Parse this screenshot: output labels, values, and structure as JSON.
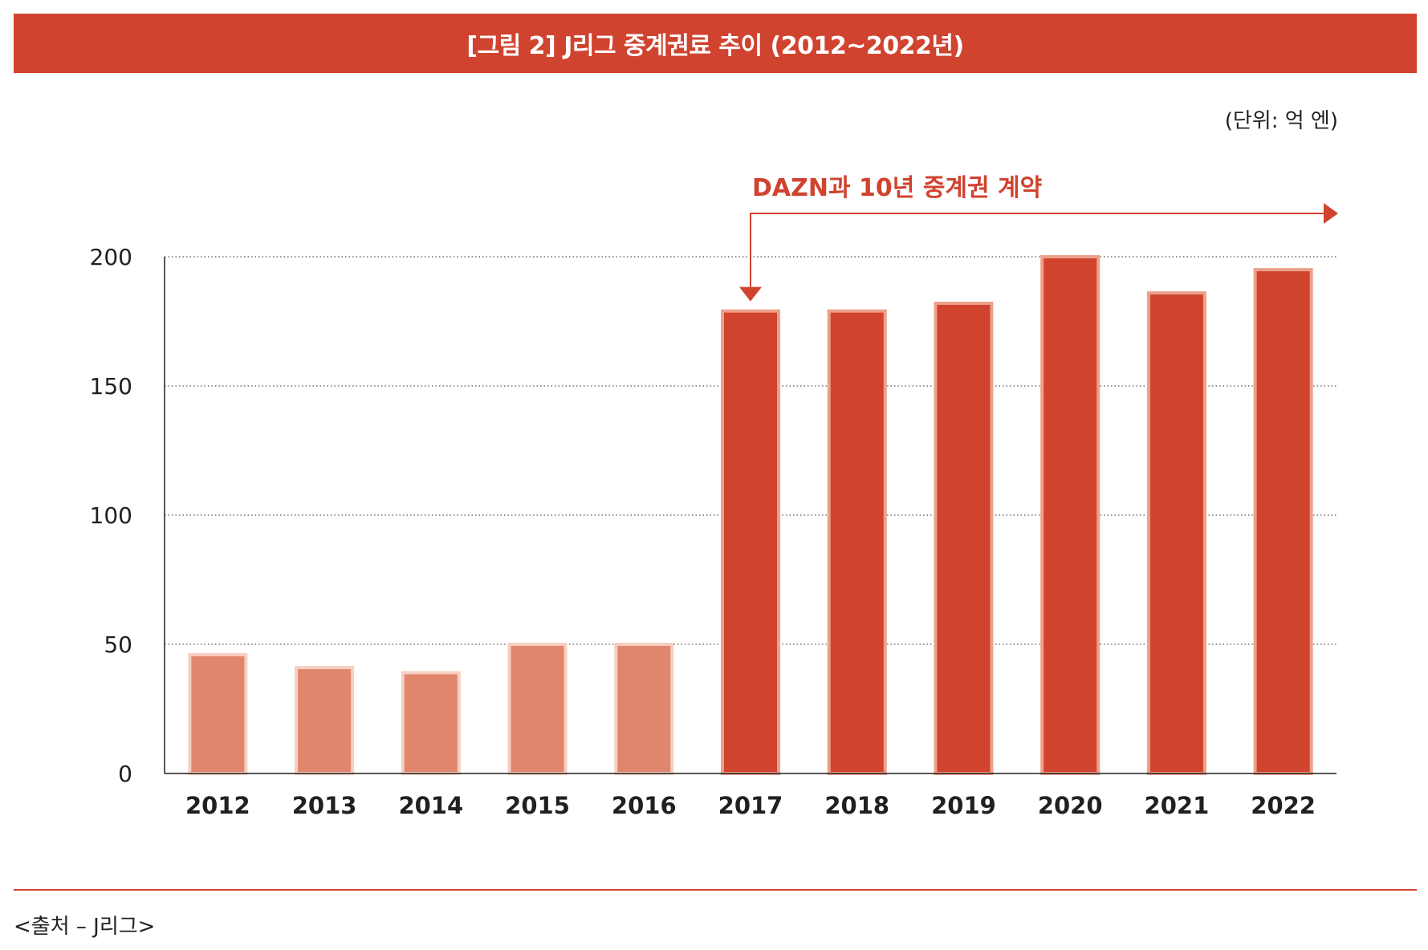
{
  "header": {
    "title": "[그림 2] J리그 중계권료 추이 (2012~2022년)"
  },
  "unit_label": "(단위: 억 엔)",
  "footer": {
    "source": "<출처 – J리그>"
  },
  "colors": {
    "accent": "#d0432f",
    "early_bar": "#e0866d",
    "early_border": "#f6cfc2",
    "late_border": "#eda08a"
  },
  "chart_data": {
    "type": "bar",
    "categories": [
      "2012",
      "2013",
      "2014",
      "2015",
      "2016",
      "2017",
      "2018",
      "2019",
      "2020",
      "2021",
      "2022"
    ],
    "values": [
      46,
      41,
      39,
      50,
      50,
      179,
      179,
      182,
      200,
      186,
      195
    ],
    "ylim": [
      0,
      200
    ],
    "yticks": [
      0,
      50,
      100,
      150,
      200
    ],
    "grid": true,
    "annotation": {
      "text": "DAZN과 10년 중계권 계약",
      "from": "2017",
      "to": "2022"
    }
  }
}
